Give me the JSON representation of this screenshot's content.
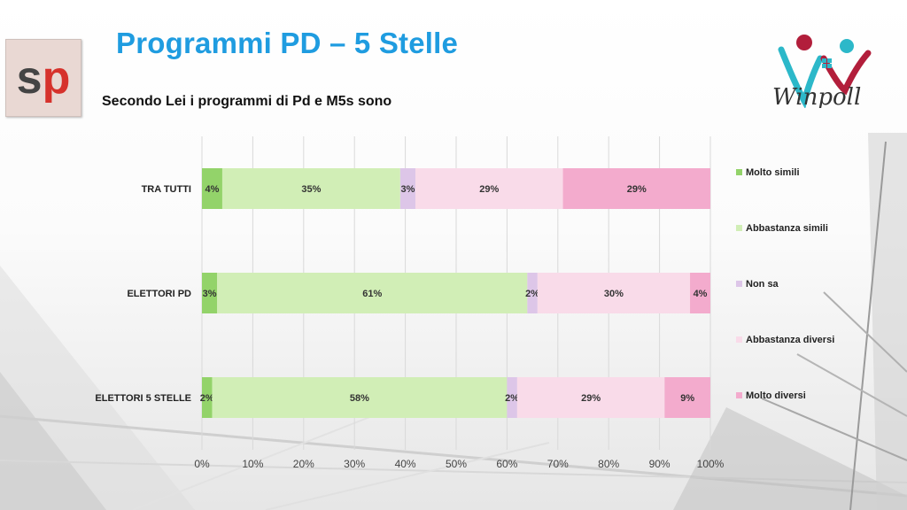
{
  "header": {
    "title": "Programmi PD – 5 Stelle",
    "subtitle": "Secondo Lei i programmi di Pd e M5s sono"
  },
  "logos": {
    "left": {
      "s": "s",
      "p": "p"
    },
    "right": {
      "text": "Winpoll"
    }
  },
  "colors": {
    "title": "#1f9ce0",
    "series": [
      "#93d36a",
      "#d1eeb6",
      "#ddc6e8",
      "#f9dbe9",
      "#f3abcd"
    ]
  },
  "chart_data": {
    "type": "bar",
    "orientation": "horizontal",
    "stacked": true,
    "categories": [
      "TRA TUTTI",
      "ELETTORI PD",
      "ELETTORI 5 STELLE"
    ],
    "series": [
      {
        "name": "Molto simili",
        "values": [
          4,
          3,
          2
        ],
        "labels": [
          "4%",
          "3%",
          "2%"
        ]
      },
      {
        "name": "Abbastanza simili",
        "values": [
          35,
          61,
          58
        ],
        "labels": [
          "35%",
          "61%",
          "58%"
        ]
      },
      {
        "name": "Non sa",
        "values": [
          3,
          2,
          2
        ],
        "labels": [
          "3%",
          "2%",
          "2%"
        ]
      },
      {
        "name": "Abbastanza diversi",
        "values": [
          29,
          30,
          29
        ],
        "labels": [
          "29%",
          "30%",
          "29%"
        ]
      },
      {
        "name": "Molto diversi",
        "values": [
          29,
          4,
          9
        ],
        "labels": [
          "29%",
          "4%",
          "9%"
        ]
      }
    ],
    "x_ticks": [
      "0%",
      "10%",
      "20%",
      "30%",
      "40%",
      "50%",
      "60%",
      "70%",
      "80%",
      "90%",
      "100%"
    ],
    "xlim": [
      0,
      100
    ],
    "grid": true,
    "legend_position": "right"
  }
}
